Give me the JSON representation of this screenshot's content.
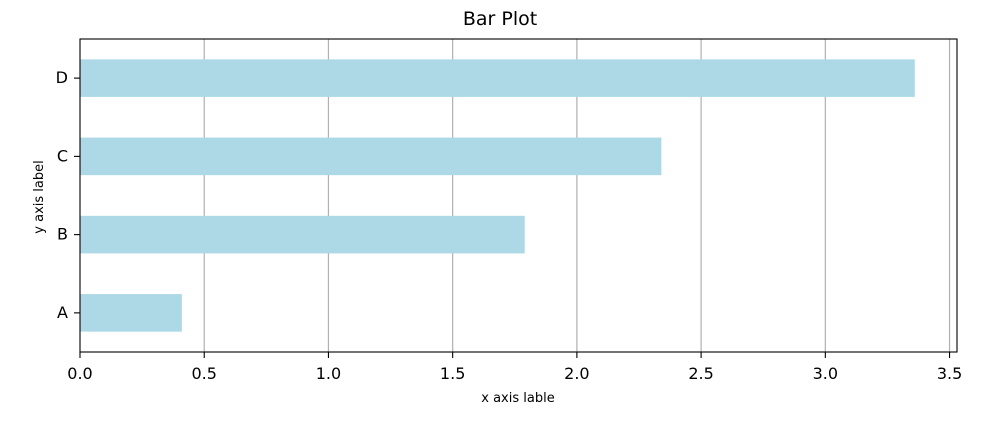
{
  "chart_data": {
    "type": "bar",
    "orientation": "horizontal",
    "title": "Bar Plot",
    "xlabel": "x axis lable",
    "ylabel": "y axis label",
    "categories": [
      "A",
      "B",
      "C",
      "D"
    ],
    "values": [
      0.41,
      1.79,
      2.34,
      3.36
    ],
    "xlim": [
      0,
      3.53
    ],
    "xticks": [
      "0.0",
      "0.5",
      "1.0",
      "1.5",
      "2.0",
      "2.5",
      "3.0",
      "3.5"
    ],
    "grid": "x",
    "bar_color": "#add8e6"
  }
}
